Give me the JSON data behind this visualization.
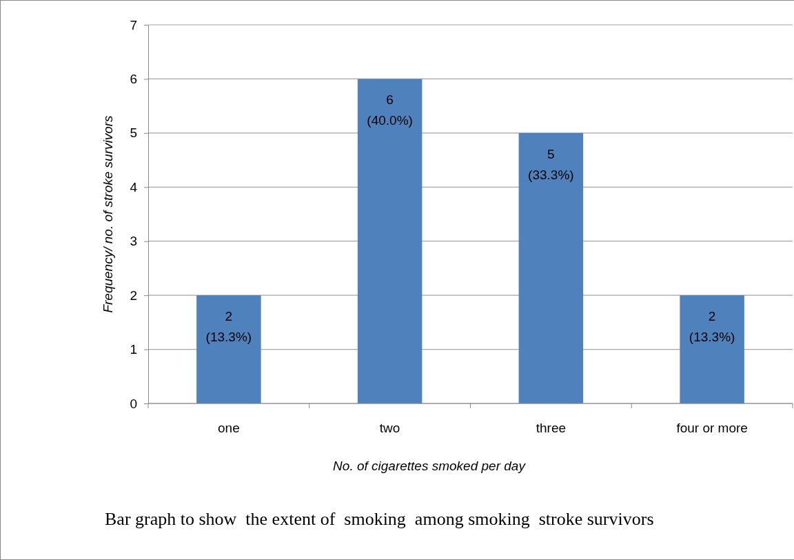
{
  "chart_data": {
    "type": "bar",
    "xlabel": "No. of cigarettes smoked per day",
    "ylabel": "Frequency/ no. of stroke survivors",
    "categories": [
      "one",
      "two",
      "three",
      "four or more"
    ],
    "values": [
      2,
      6,
      5,
      2
    ],
    "color": "#4f81bd",
    "value_labels": [
      "2\n(13.3%)",
      "6\n(40.0%)",
      "5\n(33.3%)",
      "2\n(13.3%)"
    ],
    "ylim": [
      0,
      7
    ],
    "yticks": [
      0,
      1,
      2,
      3,
      4,
      5,
      6,
      7
    ],
    "grid": "y",
    "annotations": [
      "Bar graph to show  the extent of  smoking  among smoking  stroke survivors"
    ]
  }
}
